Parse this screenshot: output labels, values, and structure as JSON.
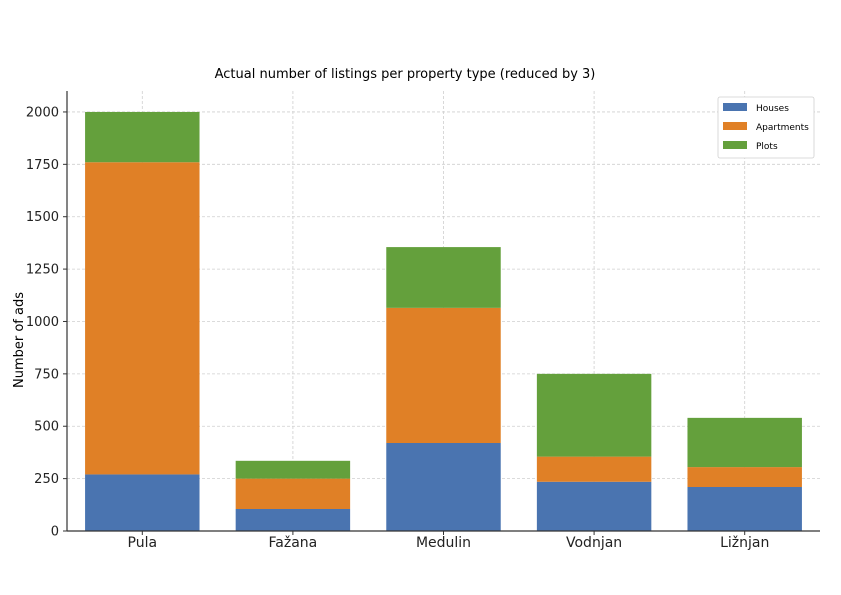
{
  "chart_data": {
    "type": "bar",
    "stacked": true,
    "title": "Actual number of listings per property type (reduced by 3)",
    "xlabel": "",
    "ylabel": "Number of ads",
    "ylim": [
      0,
      2100
    ],
    "yticks": [
      0,
      250,
      500,
      750,
      1000,
      1250,
      1500,
      1750,
      2000
    ],
    "ytick_labels": [
      "0",
      "250",
      "500",
      "750",
      "1000",
      "1250",
      "1500",
      "1750",
      "2000"
    ],
    "categories": [
      "Pula",
      "Fažana",
      "Medulin",
      "Vodnjan",
      "Ližnjan"
    ],
    "series": [
      {
        "name": "Houses",
        "color": "#4a74b0",
        "values": [
          270,
          105,
          420,
          235,
          210
        ]
      },
      {
        "name": "Apartments",
        "color": "#e08026",
        "values": [
          1490,
          145,
          645,
          120,
          95
        ]
      },
      {
        "name": "Plots",
        "color": "#64a03c",
        "values": [
          240,
          85,
          290,
          395,
          235
        ]
      }
    ],
    "grid": true,
    "legend_position": "top-right"
  }
}
